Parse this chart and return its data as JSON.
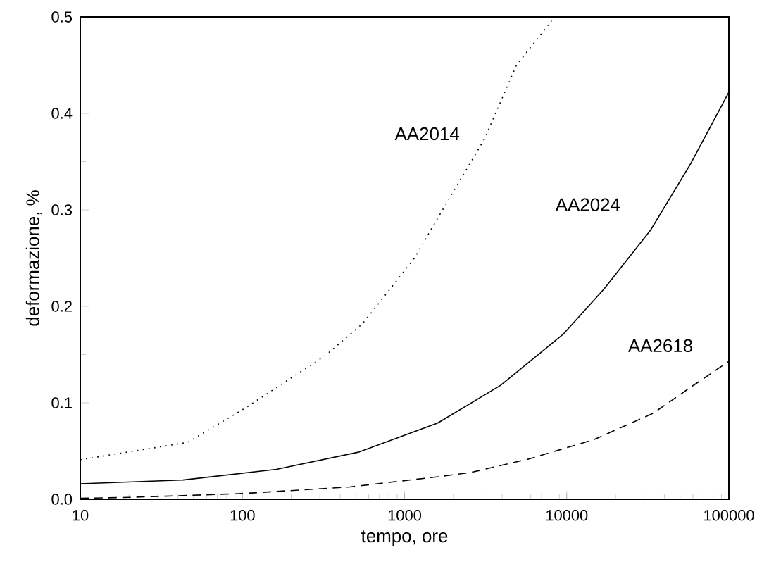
{
  "chart_data": {
    "type": "line",
    "xlabel": "tempo, ore",
    "ylabel": "deformazione, %",
    "log": "x",
    "xlim": [
      10,
      100000
    ],
    "ylim": [
      0,
      0.5
    ],
    "xticks": [
      10,
      100,
      1000,
      10000,
      100000
    ],
    "yticks": [
      {
        "value": 0,
        "label": "0.0"
      },
      {
        "value": 0.1,
        "label": "0.1"
      },
      {
        "value": 0.2,
        "label": "0.2"
      },
      {
        "value": 0.3,
        "label": "0.3"
      },
      {
        "value": 0.4,
        "label": "0.4"
      },
      {
        "value": 0.5,
        "label": "0.5"
      }
    ],
    "grid": false,
    "legend": false,
    "marker": "none",
    "series": [
      {
        "name": "AA2014",
        "color": "#000000",
        "line_style": "dotted",
        "x": [
          10,
          46,
          105,
          325,
          550,
          1140,
          1800,
          3100,
          4900,
          8070
        ],
        "values": [
          0.041,
          0.059,
          0.095,
          0.149,
          0.182,
          0.249,
          0.306,
          0.373,
          0.45,
          0.496
        ]
      },
      {
        "name": "AA2024",
        "color": "#000000",
        "line_style": "solid",
        "x": [
          10,
          43,
          162,
          525,
          1600,
          3900,
          9500,
          17000,
          32900,
          58200,
          100000
        ],
        "values": [
          0.016,
          0.02,
          0.031,
          0.049,
          0.079,
          0.118,
          0.171,
          0.218,
          0.279,
          0.348,
          0.422
        ]
      },
      {
        "name": "AA2618",
        "color": "#000000",
        "line_style": "dashed",
        "x": [
          10,
          20,
          46,
          102,
          460,
          1640,
          2600,
          5900,
          14800,
          34000,
          58000,
          100000
        ],
        "values": [
          0.001,
          0.002,
          0.004,
          0.006,
          0.0128,
          0.0235,
          0.028,
          0.042,
          0.062,
          0.089,
          0.116,
          0.143
        ]
      }
    ]
  }
}
